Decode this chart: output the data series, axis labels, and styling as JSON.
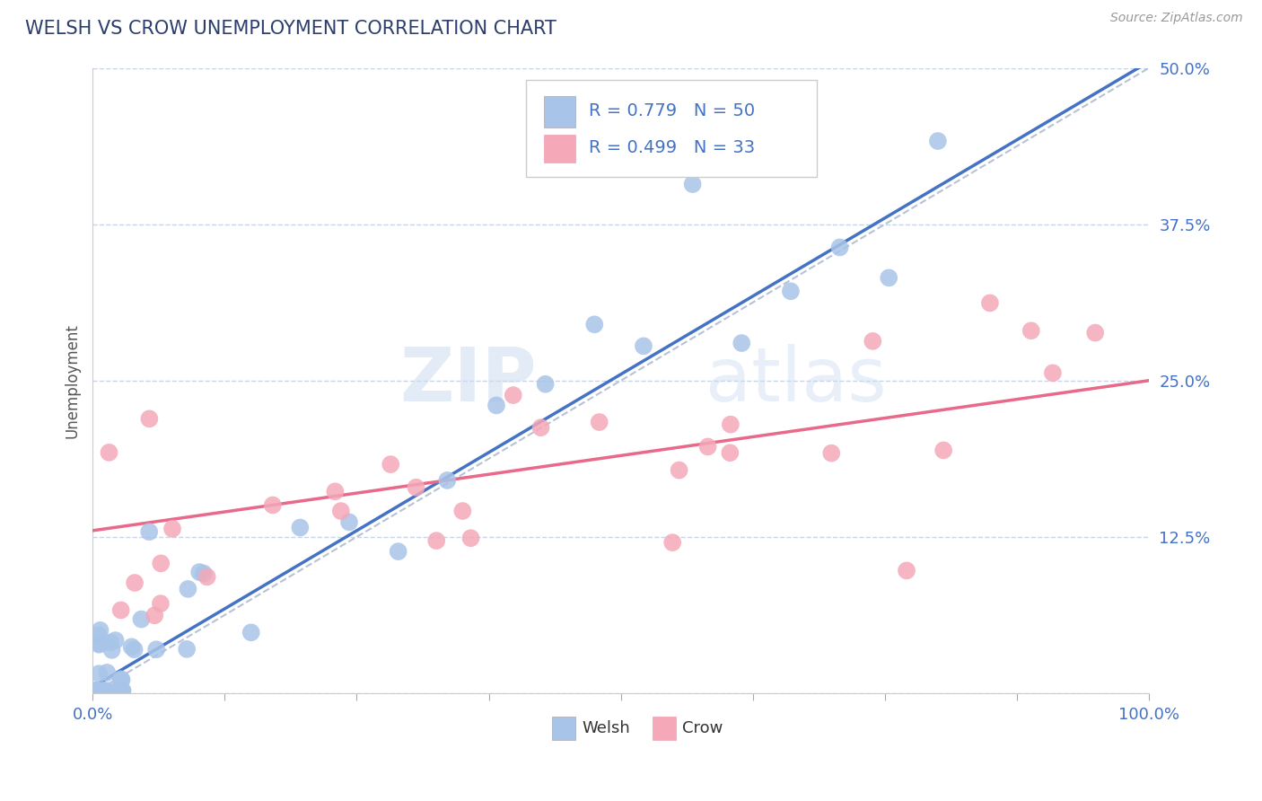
{
  "title": "WELSH VS CROW UNEMPLOYMENT CORRELATION CHART",
  "source": "Source: ZipAtlas.com",
  "ylabel": "Unemployment",
  "welsh_color": "#a8c4e8",
  "crow_color": "#f4a8b8",
  "welsh_line_color": "#4472c4",
  "crow_line_color": "#e8698a",
  "dashed_line_color": "#b0bcd0",
  "R_welsh": 0.779,
  "N_welsh": 50,
  "R_crow": 0.499,
  "N_crow": 33,
  "watermark_zip": "ZIP",
  "watermark_atlas": "atlas",
  "background_color": "#ffffff",
  "grid_color": "#c8d4e8",
  "xmin": 0,
  "xmax": 100,
  "ymin": 0,
  "ymax": 50,
  "ytick_vals": [
    0,
    12.5,
    25.0,
    37.5,
    50.0
  ],
  "ytick_labels": [
    "",
    "12.5%",
    "25.0%",
    "37.5%",
    "50.0%"
  ],
  "welsh_slope": 0.5,
  "welsh_intercept": 0.5,
  "crow_slope": 0.12,
  "crow_intercept": 13.0
}
